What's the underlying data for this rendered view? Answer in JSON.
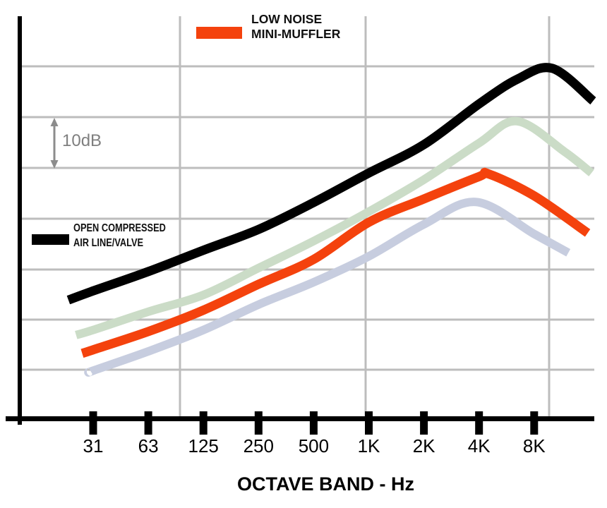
{
  "page": {
    "background": "#ffffff"
  },
  "legend": {
    "top": {
      "line1": "LOW NOISE",
      "line2": "MINI-MUFFLER",
      "color": "#F4420D"
    },
    "left": {
      "line1": "OPEN COMPRESSED",
      "line2": "AIR LINE/VALVE",
      "color": "#000000"
    }
  },
  "scale": {
    "label": "10dB",
    "arrow_color": "#8c8c8c",
    "text_color": "#7f7f7f"
  },
  "axis": {
    "xlabel": "OCTAVE BAND - Hz"
  },
  "chart_data": {
    "type": "line",
    "title": "",
    "xlabel": "OCTAVE BAND - Hz",
    "ylabel": "",
    "categories": [
      "31",
      "63",
      "125",
      "250",
      "500",
      "1K",
      "2K",
      "4K",
      "8K"
    ],
    "x_unit": "Hz octave bands",
    "grid": "on",
    "grid_color": "#bdbdbd",
    "axis_color": "#000000",
    "y_axis_labeled": false,
    "y_gridline_spacing_db": 10,
    "y_scale_note": "y axis unlabeled; double-headed arrow marks 10 dB between adjacent gridlines",
    "legend_position": "top-center (muffler) and mid-left (open air line)",
    "series": [
      {
        "key": "open_air",
        "name": "OPEN COMPRESSED AIR LINE/VALVE",
        "color": "#000000",
        "stroke_width": 13,
        "values_db_above_axis": [
          25,
          29,
          33,
          37,
          42,
          48,
          54,
          62,
          68
        ],
        "trace_octidx_db": [
          [
            -0.45,
            23.3
          ],
          [
            0,
            25.1
          ],
          [
            1,
            28.9
          ],
          [
            2,
            33.1
          ],
          [
            3,
            37.2
          ],
          [
            4,
            42.5
          ],
          [
            5,
            48.3
          ],
          [
            6,
            53.9
          ],
          [
            7,
            61.9
          ],
          [
            7.7,
            66.8
          ],
          [
            8.33,
            68.9
          ],
          [
            9.07,
            62.5
          ]
        ]
      },
      {
        "key": "pale_green",
        "name": "unlabeled (pale green)",
        "color": "#cbdcc7",
        "stroke_width": 12,
        "values_db_above_axis": [
          17,
          21,
          24,
          30,
          35,
          41,
          47,
          54,
          57
        ],
        "trace_octidx_db": [
          [
            -0.31,
            16.4
          ],
          [
            0,
            17.4
          ],
          [
            1,
            21.0
          ],
          [
            2,
            24.3
          ],
          [
            3,
            29.6
          ],
          [
            4,
            34.9
          ],
          [
            5,
            40.7
          ],
          [
            6,
            47.0
          ],
          [
            7,
            54.2
          ],
          [
            7.69,
            58.5
          ],
          [
            8.55,
            52.5
          ],
          [
            9.04,
            48.3
          ]
        ]
      },
      {
        "key": "muffler",
        "name": "LOW NOISE MINI-MUFFLER",
        "color": "#F4420D",
        "stroke_width": 13,
        "values_db_above_axis": [
          14,
          17,
          21,
          26,
          31,
          39,
          43,
          48,
          44
        ],
        "trace_octidx_db": [
          [
            -0.2,
            12.8
          ],
          [
            0,
            13.5
          ],
          [
            1,
            17.1
          ],
          [
            2,
            21.3
          ],
          [
            3,
            26.4
          ],
          [
            4,
            31.3
          ],
          [
            5,
            38.6
          ],
          [
            6,
            43.2
          ],
          [
            7,
            47.6
          ],
          [
            7.18,
            48.1
          ],
          [
            8,
            43.8
          ],
          [
            8.97,
            36.5
          ]
        ]
      },
      {
        "key": "pale_lavender",
        "name": "unlabeled (pale lavender)",
        "color": "#c7cdDF",
        "stroke_width": 12,
        "values_db_above_axis": [
          9,
          13,
          17,
          22,
          27,
          32,
          38,
          43,
          36
        ],
        "trace_octidx_db": [
          [
            -0.04,
            9.2
          ],
          [
            0,
            9.4
          ],
          [
            1,
            13.2
          ],
          [
            2,
            17.4
          ],
          [
            3,
            22.4
          ],
          [
            4,
            26.8
          ],
          [
            5,
            31.9
          ],
          [
            6,
            38.2
          ],
          [
            6.95,
            42.6
          ],
          [
            8,
            36.3
          ],
          [
            8.62,
            32.6
          ]
        ]
      }
    ]
  }
}
